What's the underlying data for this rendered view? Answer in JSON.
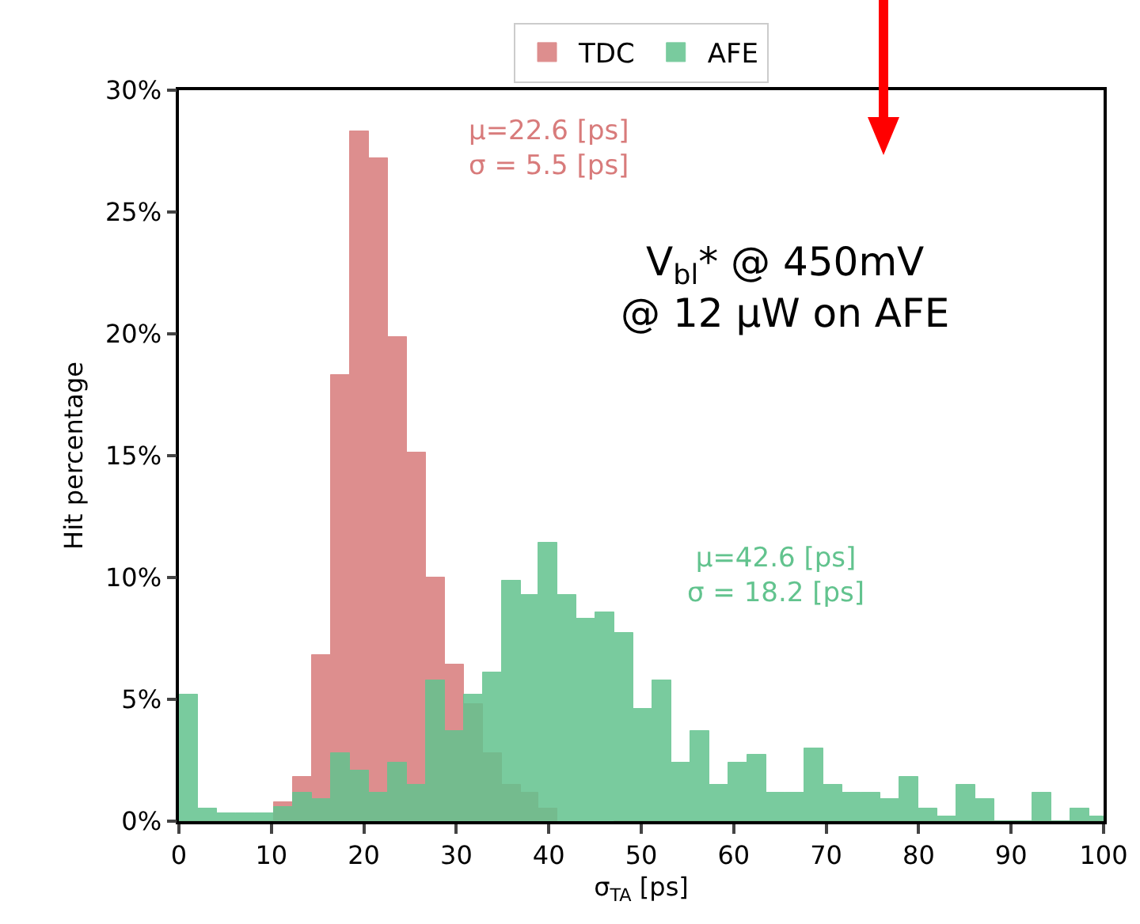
{
  "chart_data": {
    "type": "histogram",
    "xlabel": "σ$_{TA}$ [ps]",
    "ylabel": "Hit percentage",
    "bins": [
      0,
      2.05,
      4.1,
      6.15,
      8.2,
      10.25,
      12.3,
      14.35,
      16.4,
      18.45,
      20.5,
      22.55,
      24.6,
      26.65,
      28.7,
      30.75,
      32.8,
      34.85,
      36.9,
      38.95,
      41,
      43.05,
      45.1,
      47.15,
      49.2,
      51.25,
      53.3,
      55.35,
      57.4,
      59.45,
      61.5,
      63.55,
      65.6,
      67.65,
      69.7,
      71.75,
      73.8,
      75.85,
      77.9,
      79.95,
      82,
      84.05,
      86.1,
      88.15,
      90.2,
      92.25,
      94.3,
      96.35,
      98.4,
      100
    ],
    "series": [
      {
        "name": "TDC",
        "color": "#d87b7b",
        "values": [
          0,
          0,
          0,
          0,
          0,
          0.8,
          1.8,
          6.8,
          18.3,
          28.3,
          27.2,
          19.9,
          15.1,
          10.0,
          6.4,
          4.8,
          2.8,
          1.5,
          1.2,
          0.5,
          null,
          null,
          null,
          0,
          0,
          0,
          0,
          0,
          0,
          0,
          0,
          0,
          0,
          0,
          0,
          0,
          0,
          0,
          0,
          0,
          0,
          0,
          0,
          0,
          0,
          0,
          0,
          0,
          0
        ]
      },
      {
        "name": "AFE",
        "color": "#62c38e",
        "values": [
          5.2,
          0.5,
          0.3,
          0.3,
          0.3,
          0.6,
          1.2,
          0.9,
          2.8,
          2.1,
          1.2,
          2.4,
          1.5,
          5.8,
          3.7,
          5.2,
          6.1,
          9.9,
          9.3,
          11.4,
          9.3,
          8.3,
          8.6,
          7.7,
          4.6,
          5.8,
          2.4,
          3.7,
          1.5,
          2.4,
          2.7,
          1.2,
          1.2,
          3.0,
          1.5,
          1.2,
          1.2,
          0.9,
          1.8,
          0.5,
          0.2,
          1.5,
          0.9,
          0,
          0,
          1.2,
          0,
          0.5,
          0.2
        ]
      }
    ],
    "xlim": [
      0,
      100
    ],
    "xticks": [
      0,
      10,
      20,
      30,
      40,
      50,
      60,
      70,
      80,
      90,
      100
    ],
    "ylim": [
      0,
      30
    ],
    "yticks": [
      {
        "value": 0,
        "label": "0%"
      },
      {
        "value": 5,
        "label": "5%"
      },
      {
        "value": 10,
        "label": "10%"
      },
      {
        "value": 15,
        "label": "15%"
      },
      {
        "value": 20,
        "label": "20%"
      },
      {
        "value": 25,
        "label": "25%"
      },
      {
        "value": 30,
        "label": "30%"
      }
    ],
    "annotations": [
      "μ=22.6 [ps]\nσ = 5.5 [ps]",
      "μ=42.6 [ps]\nσ = 18.2 [ps]",
      "V$_{bl}$* @ 450mV\n@ 12 μW on AFE"
    ],
    "grid": false,
    "legend": "top"
  }
}
